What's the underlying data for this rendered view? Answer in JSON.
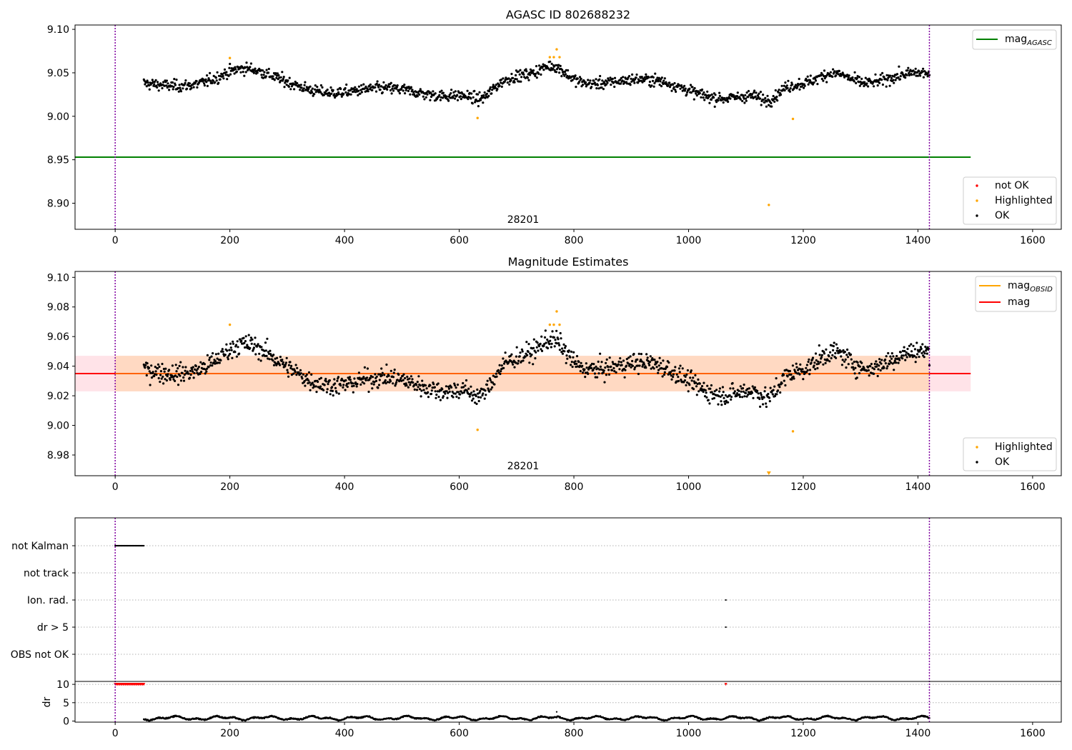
{
  "chart_data": [
    {
      "type": "scatter",
      "title": "AGASC ID 802688232",
      "xlim": [
        -70,
        1650
      ],
      "ylim": [
        8.87,
        9.105
      ],
      "xticks": [
        0,
        200,
        400,
        600,
        800,
        1000,
        1200,
        1400,
        1600
      ],
      "xtick_labels": [
        "0",
        "200",
        "400",
        "600",
        "800",
        "1000",
        "1200",
        "1400",
        "1600"
      ],
      "yticks": [
        8.9,
        8.95,
        9.0,
        9.05,
        9.1
      ],
      "ytick_labels": [
        "8.90",
        "8.95",
        "9.00",
        "9.05",
        "9.10"
      ],
      "annotation": "28201",
      "vlines": [
        0,
        1420
      ],
      "vline_color": "#8000a0",
      "reference_line": {
        "name": "mag_AGASC",
        "y": 8.953,
        "x": [
          -70,
          1492
        ],
        "color": "#008000"
      },
      "line_legend": [
        {
          "label": "mag",
          "subscript": "AGASC",
          "color": "#008000"
        }
      ],
      "point_legend": [
        {
          "label": "not OK",
          "color": "#ff0000"
        },
        {
          "label": "Highlighted",
          "color": "#ffa500"
        },
        {
          "label": "OK",
          "color": "#000000"
        }
      ],
      "series": [
        {
          "name": "OK",
          "color": "#000000",
          "x_range": [
            50,
            1420
          ],
          "n": 1370,
          "mean": 9.035,
          "noise": 0.009
        },
        {
          "name": "Highlighted",
          "color": "#ffa500",
          "points": [
            [
              200,
              9.067
            ],
            [
              632,
              8.998
            ],
            [
              758,
              9.068
            ],
            [
              765,
              9.068
            ],
            [
              770,
              9.077
            ],
            [
              775,
              9.068
            ],
            [
              1140,
              8.898
            ],
            [
              1182,
              8.997
            ]
          ]
        }
      ]
    },
    {
      "type": "scatter",
      "title": "Magnitude Estimates",
      "xlim": [
        -70,
        1650
      ],
      "ylim": [
        8.966,
        9.104
      ],
      "xticks": [
        0,
        200,
        400,
        600,
        800,
        1000,
        1200,
        1400,
        1600
      ],
      "xtick_labels": [
        "0",
        "200",
        "400",
        "600",
        "800",
        "1000",
        "1200",
        "1400",
        "1600"
      ],
      "yticks": [
        8.98,
        9.0,
        9.02,
        9.04,
        9.06,
        9.08,
        9.1
      ],
      "ytick_labels": [
        "8.98",
        "9.00",
        "9.02",
        "9.04",
        "9.06",
        "9.08",
        "9.10"
      ],
      "annotation": "28201",
      "vlines": [
        0,
        1420
      ],
      "vline_color": "#8000a0",
      "mag_line": {
        "name": "mag",
        "y": 9.035,
        "color": "#ff0000"
      },
      "mag_obsid": {
        "name": "mag_OBSID",
        "y": 9.035,
        "x": [
          0,
          1420
        ],
        "color": "#ffa500"
      },
      "bands": [
        {
          "x": [
            -70,
            1492
          ],
          "y": [
            9.023,
            9.047
          ],
          "color": "#ffc0cb"
        },
        {
          "x": [
            0,
            1420
          ],
          "y": [
            9.023,
            9.047
          ],
          "color": "#ffd2a8"
        }
      ],
      "line_legend": [
        {
          "label": "mag",
          "subscript": "OBSID",
          "color": "#ffa500"
        },
        {
          "label": "mag",
          "subscript": "",
          "color": "#ff0000"
        }
      ],
      "point_legend": [
        {
          "label": "Highlighted",
          "color": "#ffa500"
        },
        {
          "label": "OK",
          "color": "#000000"
        }
      ],
      "series": [
        {
          "name": "OK",
          "color": "#000000",
          "x_range": [
            50,
            1420
          ],
          "n": 1370,
          "mean": 9.035,
          "noise": 0.009
        },
        {
          "name": "Highlighted",
          "color": "#ffa500",
          "points": [
            [
              200,
              9.068
            ],
            [
              632,
              8.997
            ],
            [
              758,
              9.068
            ],
            [
              765,
              9.068
            ],
            [
              770,
              9.077
            ],
            [
              775,
              9.068
            ],
            [
              1182,
              8.996
            ]
          ]
        }
      ],
      "off_axis_marker": {
        "x": 1140,
        "color": "#ffa500"
      }
    },
    {
      "type": "scatter",
      "title": "",
      "xlim": [
        -70,
        1650
      ],
      "xticks": [
        0,
        200,
        400,
        600,
        800,
        1000,
        1200,
        1400,
        1600
      ],
      "xtick_labels": [
        "0",
        "200",
        "400",
        "600",
        "800",
        "1000",
        "1200",
        "1400",
        "1600"
      ],
      "vlines": [
        0,
        1420
      ],
      "flag_rows": [
        "not Kalman",
        "not track",
        "Ion. rad.",
        "dr > 5",
        "OBS not OK"
      ],
      "flags": [
        {
          "row": "not Kalman",
          "x": [
            0,
            50
          ]
        },
        {
          "row": "Ion. rad.",
          "x": [
            1065
          ]
        },
        {
          "row": "dr > 5",
          "x": [
            1065
          ]
        }
      ],
      "dr_panel": {
        "ylabel": "dr",
        "yticks": [
          0,
          5,
          10
        ],
        "ytick_labels": [
          "0",
          "5",
          "10"
        ],
        "ylim": [
          -0.3,
          10.8
        ],
        "clipped_markers": {
          "y": 10,
          "x_range": [
            0,
            50
          ],
          "extra_x": [
            1065
          ],
          "color": "#ff0000"
        },
        "series": {
          "color": "#000000",
          "x_range": [
            50,
            1420
          ],
          "mean": 0.8,
          "noise": 0.35
        }
      }
    }
  ]
}
